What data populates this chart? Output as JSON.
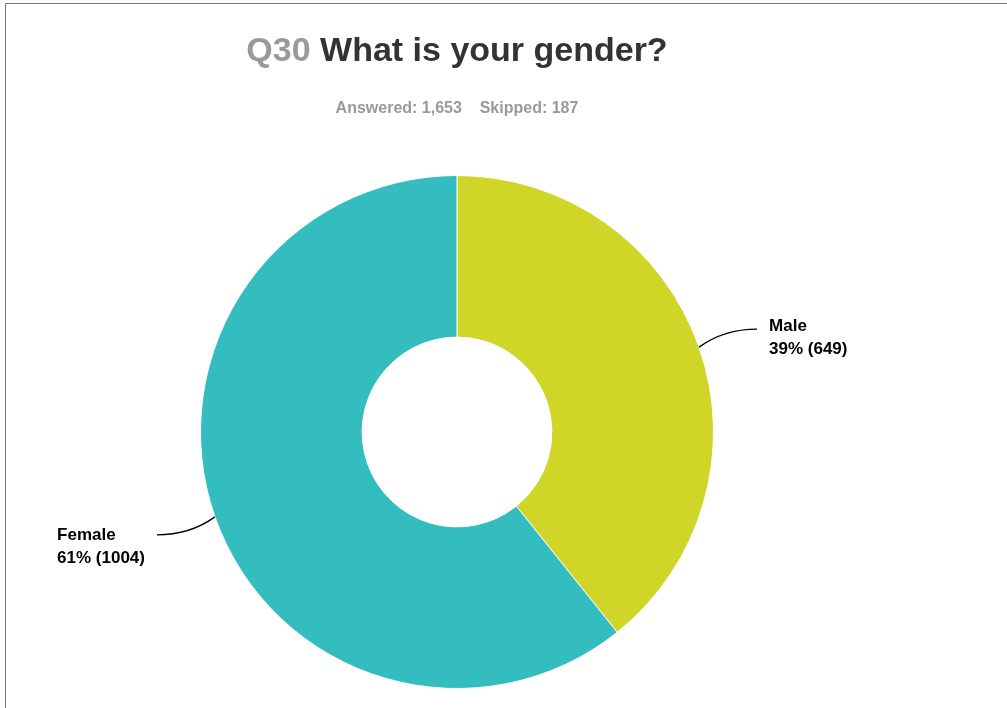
{
  "chart_data": {
    "type": "donut",
    "title": "Q30 What is your gender?",
    "subtitle": "Answered: 1,653    Skipped: 187",
    "categories": [
      "Male",
      "Female"
    ],
    "values": [
      649,
      1004
    ],
    "colors": [
      "#cfd628",
      "#33bdbf"
    ],
    "value_labels": [
      "39% (649)",
      "61% (1004)"
    ],
    "legend": false
  }
}
